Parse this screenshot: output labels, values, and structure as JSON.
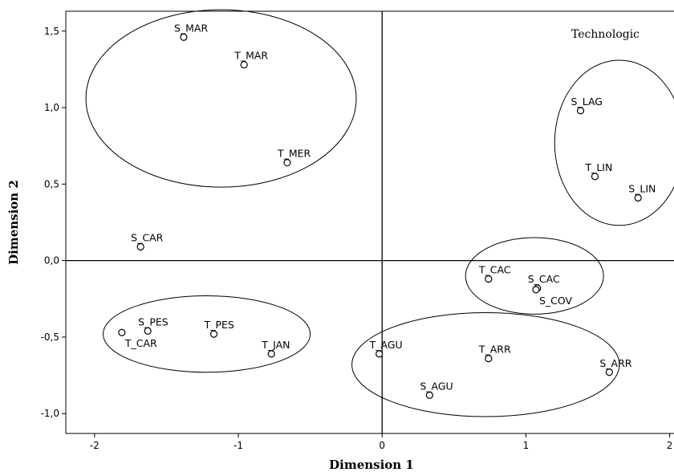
{
  "chart_data": {
    "type": "scatter",
    "xlabel": "Dimension 1",
    "ylabel": "Dimension 2",
    "annotation": "Technologic",
    "xlim": [
      -2.2,
      2.03
    ],
    "ylim": [
      -1.13,
      1.63
    ],
    "xticks": [
      -2,
      -1,
      0,
      1,
      2
    ],
    "yticks": [
      -1.0,
      -0.5,
      0.0,
      0.5,
      1.0,
      1.5
    ],
    "xtick_labels": [
      "-2",
      "-1",
      "0",
      "1",
      "2"
    ],
    "ytick_labels": [
      "-1,0",
      "-0,5",
      "0,0",
      "0,5",
      "1,0",
      "1,5"
    ],
    "reference_lines": {
      "x": 0,
      "y": 0
    },
    "points": [
      {
        "label": "S_MAR",
        "x": -1.38,
        "y": 1.46
      },
      {
        "label": "T_MAR",
        "x": -0.96,
        "y": 1.28
      },
      {
        "label": "T_MER",
        "x": -0.66,
        "y": 0.64
      },
      {
        "label": "S_CAR",
        "x": -1.68,
        "y": 0.09
      },
      {
        "label": "S_LAG",
        "x": 1.38,
        "y": 0.98
      },
      {
        "label": "T_LIN",
        "x": 1.48,
        "y": 0.55
      },
      {
        "label": "S_LIN",
        "x": 1.78,
        "y": 0.41
      },
      {
        "label": "T_CAC",
        "x": 0.74,
        "y": -0.12
      },
      {
        "label": "S_CAC",
        "x": 1.08,
        "y": -0.18
      },
      {
        "label": "S_COV",
        "x": 1.07,
        "y": -0.19
      },
      {
        "label": "S_PES",
        "x": -1.63,
        "y": -0.46
      },
      {
        "label": "T_CAR",
        "x": -1.81,
        "y": -0.47
      },
      {
        "label": "T_PES",
        "x": -1.17,
        "y": -0.48
      },
      {
        "label": "T_JAN",
        "x": -0.77,
        "y": -0.61
      },
      {
        "label": "T_AGU",
        "x": -0.02,
        "y": -0.61
      },
      {
        "label": "T_ARR",
        "x": 0.74,
        "y": -0.64
      },
      {
        "label": "S_ARR",
        "x": 1.58,
        "y": -0.73
      },
      {
        "label": "S_AGU",
        "x": 0.33,
        "y": -0.88
      }
    ],
    "ellipses": [
      {
        "cx": -1.12,
        "cy": 1.06,
        "rx": 0.94,
        "ry": 0.58
      },
      {
        "cx": 1.65,
        "cy": 0.77,
        "rx": 0.45,
        "ry": 0.54
      },
      {
        "cx": 1.06,
        "cy": -0.1,
        "rx": 0.48,
        "ry": 0.25
      },
      {
        "cx": -1.22,
        "cy": -0.48,
        "rx": 0.72,
        "ry": 0.25
      },
      {
        "cx": 0.72,
        "cy": -0.68,
        "rx": 0.93,
        "ry": 0.34
      }
    ]
  }
}
